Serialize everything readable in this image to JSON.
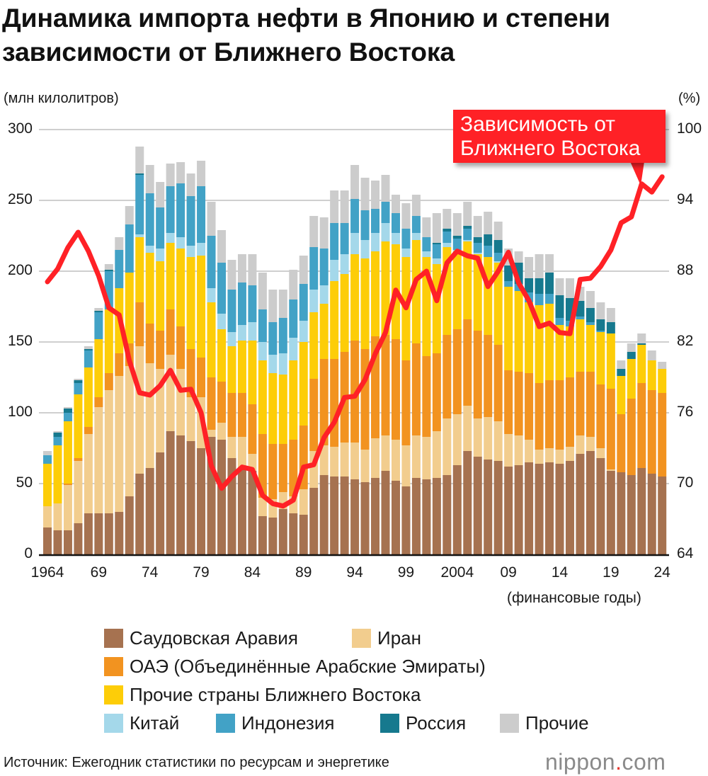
{
  "title_line1": "Динамика импорта нефти в Японию и степени",
  "title_line2": "зависимости от Ближнего Востока",
  "left_unit": "(млн килолитров)",
  "right_unit": "(%)",
  "x_axis_note": "(финансовые годы)",
  "callout": {
    "line1": "Зависимость от",
    "line2": "Ближнего Востока"
  },
  "source": "Источник: Ежегодник статистики по ресурсам и энергетике",
  "logo": {
    "name": "nippon",
    "dot": ".",
    "tld": "com"
  },
  "colors": {
    "saudi": "#a67250",
    "iran": "#f2cd8e",
    "uae": "#f29320",
    "other_me": "#fdcd08",
    "china": "#a4d8ea",
    "indonesia": "#42a2c6",
    "russia": "#16798e",
    "others": "#cccccc",
    "dependence_line": "#ff2126",
    "callout_bg": "#ff2126"
  },
  "chart_data": {
    "type": "bar",
    "stacked": true,
    "grid": true,
    "legend_position": "bottom",
    "x_start_year": 1964,
    "x_end_year": 2024,
    "x_tick_labels": [
      "1964",
      "69",
      "74",
      "79",
      "84",
      "89",
      "94",
      "99",
      "2004",
      "09",
      "14",
      "19",
      "24"
    ],
    "x_tick_years": [
      1964,
      1969,
      1974,
      1979,
      1984,
      1989,
      1994,
      1999,
      2004,
      2009,
      2014,
      2019,
      2024
    ],
    "ylim_left": [
      0,
      300
    ],
    "yticks_left": [
      "0",
      "50",
      "100",
      "150",
      "200",
      "250",
      "300"
    ],
    "ylim_right": [
      64,
      100
    ],
    "yticks_right": [
      "64",
      "70",
      "76",
      "82",
      "88",
      "94",
      "100"
    ],
    "series": [
      {
        "name": "Саудовская Аравия",
        "color_key": "saudi",
        "values": [
          19,
          17,
          17,
          22,
          29,
          29,
          29,
          30,
          41,
          57,
          61,
          72,
          87,
          84,
          80,
          75,
          83,
          81,
          68,
          60,
          59,
          27,
          26,
          32,
          29,
          28,
          47,
          56,
          55,
          55,
          53,
          51,
          54,
          59,
          52,
          48,
          54,
          53,
          54,
          56,
          63,
          73,
          69,
          67,
          66,
          62,
          63,
          65,
          64,
          65,
          64,
          66,
          71,
          73,
          68,
          59,
          58,
          56,
          61,
          57,
          55
        ]
      },
      {
        "name": "Иран",
        "color_key": "iran",
        "values": [
          15,
          19,
          32,
          44,
          56,
          75,
          87,
          96,
          92,
          90,
          74,
          59,
          54,
          47,
          31,
          36,
          5,
          12,
          15,
          23,
          12,
          13,
          13,
          12,
          12,
          18,
          26,
          21,
          21,
          24,
          26,
          23,
          28,
          25,
          29,
          29,
          30,
          30,
          33,
          40,
          36,
          32,
          27,
          30,
          28,
          23,
          21,
          16,
          10,
          10,
          10,
          10,
          13,
          10,
          7,
          1,
          0,
          0,
          0,
          0,
          0
        ]
      },
      {
        "name": "ОАЭ (Объединённые Арабские Эмираты)",
        "color_key": "uae",
        "values": [
          0,
          0,
          1,
          2,
          5,
          7,
          12,
          16,
          16,
          31,
          28,
          27,
          32,
          30,
          34,
          28,
          37,
          29,
          31,
          31,
          35,
          45,
          39,
          34,
          40,
          45,
          51,
          61,
          62,
          64,
          72,
          71,
          72,
          71,
          71,
          60,
          65,
          57,
          55,
          59,
          60,
          61,
          62,
          58,
          54,
          45,
          45,
          47,
          47,
          48,
          49,
          49,
          45,
          46,
          45,
          57,
          41,
          54,
          60,
          59,
          59
        ]
      },
      {
        "name": "Прочие страны Ближнего Востока",
        "color_key": "other_me",
        "values": [
          30,
          41,
          44,
          45,
          42,
          41,
          45,
          46,
          50,
          46,
          50,
          49,
          47,
          55,
          65,
          72,
          53,
          37,
          33,
          37,
          45,
          52,
          50,
          49,
          56,
          59,
          47,
          39,
          55,
          55,
          61,
          64,
          60,
          66,
          67,
          73,
          73,
          70,
          63,
          62,
          55,
          55,
          54,
          55,
          58,
          59,
          57,
          50,
          55,
          54,
          39,
          36,
          37,
          33,
          37,
          39,
          27,
          28,
          27,
          21,
          17
        ]
      },
      {
        "name": "Китай",
        "color_key": "china",
        "values": [
          0,
          0,
          0,
          0,
          0,
          0,
          0,
          0,
          0,
          2,
          5,
          9,
          7,
          8,
          8,
          9,
          10,
          11,
          10,
          11,
          13,
          13,
          13,
          15,
          16,
          15,
          16,
          13,
          15,
          14,
          15,
          13,
          13,
          13,
          8,
          6,
          5,
          4,
          4,
          3,
          1,
          1,
          1,
          0,
          1,
          0,
          0,
          0,
          0,
          0,
          0,
          0,
          0,
          0,
          0,
          0,
          0,
          0,
          0,
          0,
          0
        ]
      },
      {
        "name": "Индонезия",
        "color_key": "indonesia",
        "values": [
          6,
          6,
          6,
          8,
          12,
          19,
          27,
          27,
          34,
          42,
          37,
          29,
          33,
          38,
          35,
          40,
          37,
          36,
          30,
          30,
          26,
          23,
          23,
          25,
          27,
          26,
          30,
          26,
          26,
          22,
          24,
          21,
          17,
          15,
          14,
          14,
          12,
          10,
          10,
          8,
          8,
          8,
          7,
          8,
          6,
          4,
          5,
          7,
          8,
          7,
          5,
          4,
          2,
          2,
          1,
          0,
          0,
          0,
          0,
          0,
          0
        ]
      },
      {
        "name": "Россия",
        "color_key": "russia",
        "values": [
          0,
          3,
          3,
          2,
          1,
          1,
          1,
          0,
          0,
          1,
          0,
          0,
          0,
          0,
          0,
          0,
          0,
          0,
          0,
          0,
          0,
          0,
          0,
          0,
          0,
          0,
          0,
          0,
          0,
          0,
          0,
          0,
          0,
          0,
          0,
          0,
          0,
          0,
          1,
          2,
          2,
          2,
          4,
          8,
          9,
          11,
          15,
          10,
          11,
          15,
          16,
          16,
          11,
          10,
          8,
          8,
          5,
          5,
          1,
          0,
          0
        ]
      },
      {
        "name": "Прочие",
        "color_key": "others",
        "values": [
          3,
          1,
          1,
          1,
          2,
          2,
          4,
          9,
          13,
          19,
          20,
          18,
          16,
          15,
          16,
          18,
          24,
          23,
          21,
          20,
          22,
          26,
          23,
          20,
          21,
          20,
          22,
          22,
          23,
          23,
          24,
          23,
          20,
          19,
          13,
          18,
          15,
          14,
          21,
          14,
          16,
          17,
          15,
          16,
          13,
          12,
          8,
          15,
          17,
          13,
          12,
          14,
          10,
          12,
          12,
          10,
          6,
          6,
          7,
          7,
          5
        ]
      }
    ],
    "line": {
      "name": "Зависимость от Ближнего Востока",
      "axis": "right",
      "values": [
        87.1,
        88.2,
        90.0,
        91.3,
        89.7,
        87.6,
        84.9,
        84.3,
        80.4,
        77.7,
        77.5,
        78.3,
        79.6,
        77.9,
        78.0,
        76.0,
        71.5,
        69.6,
        70.6,
        71.4,
        71.2,
        69.0,
        68.3,
        68.1,
        68.6,
        71.4,
        71.6,
        73.9,
        75.2,
        77.3,
        77.4,
        78.8,
        81.0,
        82.8,
        86.4,
        84.9,
        87.3,
        88.0,
        85.5,
        88.7,
        89.7,
        89.3,
        89.1,
        86.7,
        88.0,
        89.6,
        87.0,
        85.5,
        83.3,
        83.6,
        82.8,
        82.7,
        87.3,
        87.4,
        88.4,
        89.8,
        92.1,
        92.6,
        95.4,
        94.7,
        96.0
      ]
    }
  }
}
